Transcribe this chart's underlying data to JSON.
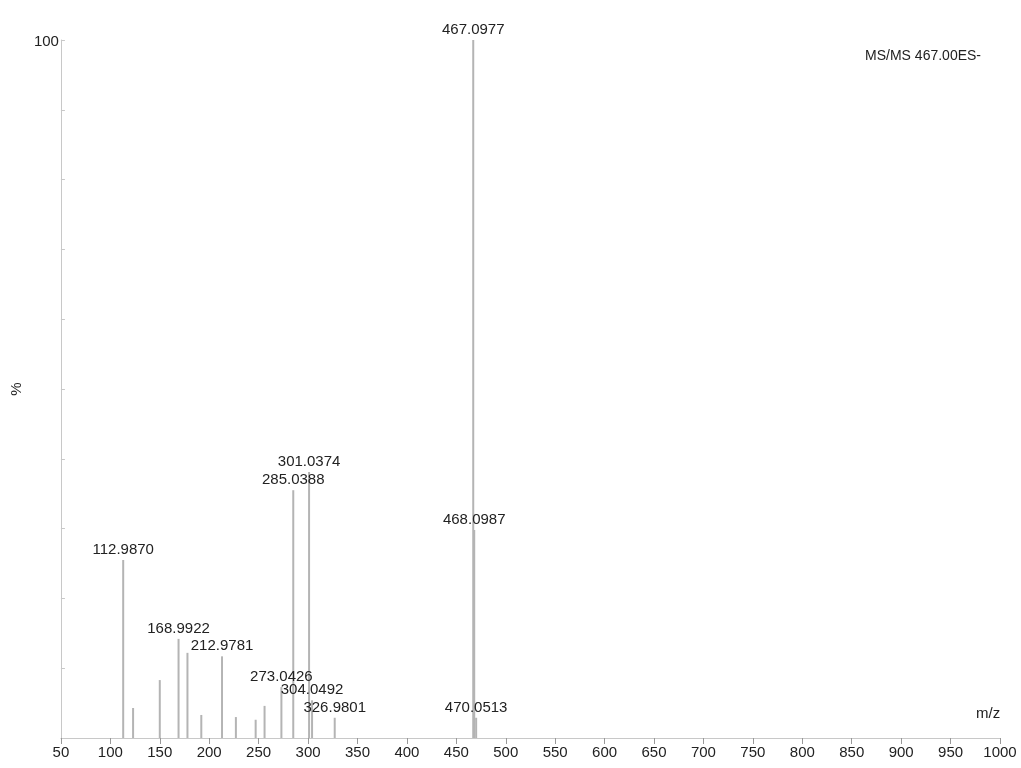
{
  "chart_data": {
    "type": "bar",
    "xlabel": "m/z",
    "ylabel": "%",
    "annotations": [
      "MS/MS 467.00ES-",
      {
        "text": "112.9870",
        "x": 112.987,
        "y": 25.5
      },
      {
        "text": "168.9922",
        "x": 168.9922,
        "y": 14.2
      },
      {
        "text": "212.9781",
        "x": 212.9781,
        "y": 11.7
      },
      {
        "text": "273.0426",
        "x": 273.0426,
        "y": 7.3
      },
      {
        "text": "285.0388",
        "x": 285.0388,
        "y": 35.5
      },
      {
        "text": "301.0374",
        "x": 301.0374,
        "y": 38.1
      },
      {
        "text": "304.0492",
        "x": 304.0492,
        "y": 5.4
      },
      {
        "text": "326.9801",
        "x": 326.9801,
        "y": 2.9
      },
      {
        "text": "467.0977",
        "x": 467.0977,
        "y": 100
      },
      {
        "text": "468.0987",
        "x": 468.0987,
        "y": 29.8
      },
      {
        "text": "470.0513",
        "x": 470.0513,
        "y": 2.9
      }
    ],
    "x": [
      112.987,
      123,
      150,
      168.9922,
      178,
      192,
      212.9781,
      227,
      247,
      256,
      273.0426,
      285.0388,
      301.0374,
      304.0492,
      326.9801,
      467.0977,
      468.0987,
      470.0513
    ],
    "values": [
      25.5,
      4.3,
      8.3,
      14.2,
      12.2,
      3.3,
      11.7,
      3.0,
      2.6,
      4.6,
      7.3,
      35.5,
      38.1,
      5.4,
      2.9,
      100,
      29.8,
      2.9
    ],
    "color": "#b4b4b4",
    "xlim": [
      50,
      1000
    ],
    "xticks": [
      50,
      100,
      150,
      200,
      250,
      300,
      350,
      400,
      450,
      500,
      550,
      600,
      650,
      700,
      750,
      800,
      850,
      900,
      950,
      1000
    ],
    "ylim": [
      0,
      100
    ],
    "yticks": [
      0,
      {
        "value": 10,
        "label": null
      },
      {
        "value": 20,
        "label": null
      },
      {
        "value": 30,
        "label": null
      },
      {
        "value": 40,
        "label": null
      },
      {
        "value": 50,
        "label": null
      },
      {
        "value": 60,
        "label": null
      },
      {
        "value": 70,
        "label": null
      },
      {
        "value": 80,
        "label": null
      },
      {
        "value": 90,
        "label": null
      },
      100
    ],
    "grid": false
  }
}
